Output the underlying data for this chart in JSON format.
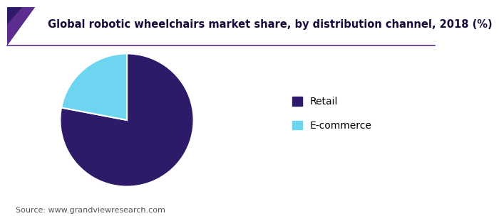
{
  "title": "Global robotic wheelchairs market share, by distribution channel, 2018 (%)",
  "labels": [
    "Retail",
    "E-commerce"
  ],
  "values": [
    78.0,
    22.0
  ],
  "colors": [
    "#2d1b69",
    "#6dd5f0"
  ],
  "start_angle": 90,
  "source_text": "Source: www.grandviewresearch.com",
  "background_color": "#ffffff",
  "title_fontsize": 10.5,
  "legend_fontsize": 10,
  "source_fontsize": 8,
  "title_color": "#1a0a3c",
  "accent_purple": "#5b2d8e",
  "accent_dark": "#2d1b69",
  "border_color": "#5b2d8e"
}
